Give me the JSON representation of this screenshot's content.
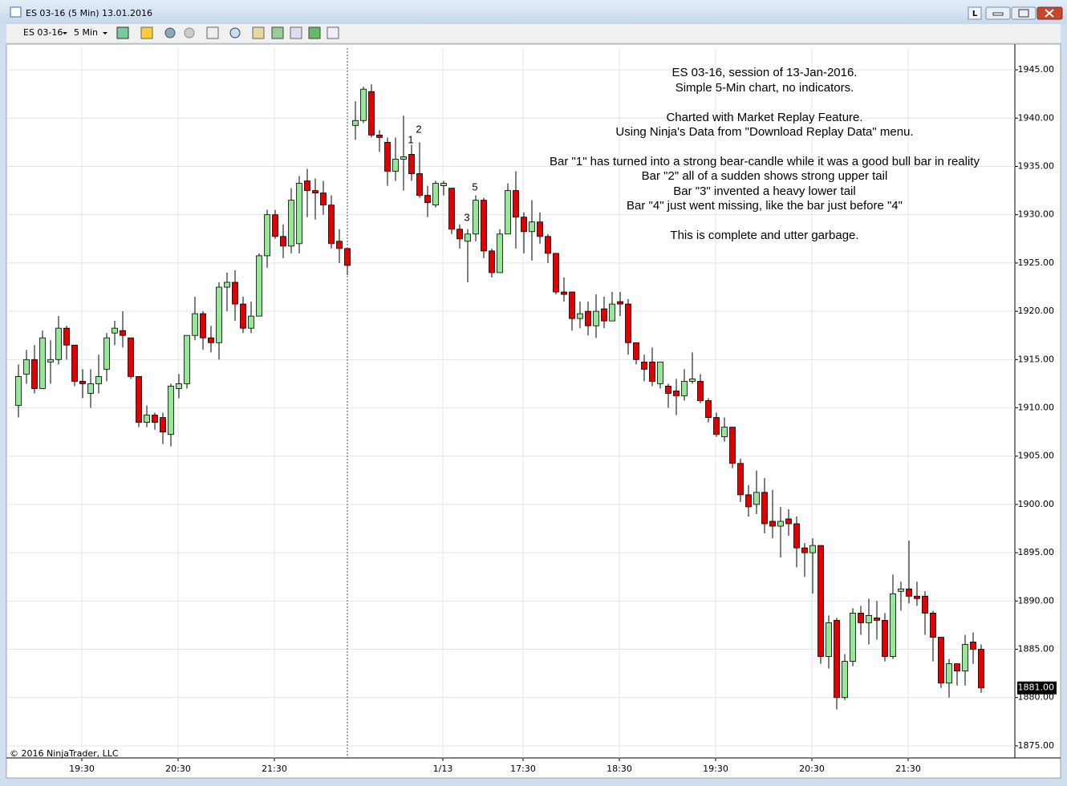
{
  "window": {
    "title": "ES 03-16 (5 Min)  13.01.2016"
  },
  "toolbar": {
    "instrument": "ES 03-16",
    "interval": "5 Min"
  },
  "chart_data": {
    "type": "candlestick",
    "categories": [
      null,
      null,
      null,
      null,
      null,
      null,
      null,
      null,
      "19:30",
      null,
      null,
      null,
      null,
      null,
      null,
      null,
      null,
      null,
      null,
      null,
      "20:30",
      null,
      null,
      null,
      null,
      null,
      null,
      null,
      null,
      null,
      null,
      null,
      "21:30",
      null,
      null,
      null,
      null,
      null,
      null,
      null,
      null,
      null,
      null,
      null,
      null,
      null,
      null,
      null,
      null,
      null,
      null,
      null,
      null,
      "1/13",
      null,
      null,
      null,
      null,
      null,
      null,
      null,
      null,
      null,
      "17:30",
      null,
      null,
      null,
      null,
      null,
      null,
      null,
      null,
      null,
      null,
      null,
      "18:30",
      null,
      null,
      null,
      null,
      null,
      null,
      null,
      null,
      null,
      null,
      null,
      "19:30",
      null,
      null,
      null,
      null,
      null,
      null,
      null,
      null,
      null,
      null,
      null,
      "20:30",
      null,
      null,
      null,
      null,
      null,
      null,
      null,
      null,
      null,
      null,
      null,
      "21:30",
      null,
      null,
      null,
      null,
      null,
      null,
      null,
      null,
      null
    ],
    "open": [
      1910.25,
      1913.5,
      1915,
      1912,
      1914.75,
      1915,
      1918.25,
      1916.5,
      1912.75,
      1911.5,
      1912.5,
      1914,
      1917.75,
      1918,
      1917.25,
      1913.25,
      1908.5,
      1909.25,
      1909,
      1907.25,
      1912,
      1912.5,
      1917.5,
      1919.75,
      1917.25,
      1916.75,
      1922.5,
      1923,
      1920.75,
      1918.25,
      1919.5,
      1925.75,
      1930,
      1927.75,
      1926.75,
      1927,
      1933.5,
      1932.5,
      1932.25,
      1931,
      1927.25,
      1926.5,
      1939.25,
      1939.75,
      1942.75,
      1938.25,
      1937.5,
      1934.5,
      1935.75,
      1936.25,
      1934.25,
      1932,
      1931,
      1933,
      1932.75,
      1928.5,
      1927.25,
      1928,
      1931.5,
      1926.25,
      1924,
      1928,
      1932.5,
      1929.75,
      1928.25,
      1929.25,
      1927.75,
      1926,
      1922,
      1922,
      1919.25,
      1920,
      1918.5,
      1920.25,
      1919,
      1921,
      1920.75,
      1916.75,
      1914.75,
      1914.75,
      1912.5,
      1912.25,
      1911.75,
      1911.25,
      1912.75,
      1912.75,
      1910.75,
      1909,
      1907,
      1908,
      1904.25,
      1901,
      1900,
      1901.25,
      1898.25,
      1897.75,
      1898.5,
      1898,
      1895.5,
      1895,
      1895.75,
      1884.25,
      1888,
      1880,
      1883.75,
      1888.75,
      1887.75,
      1888.25,
      1888,
      1884.25,
      1891,
      1891.25,
      1890.5,
      1890.5,
      1888.75,
      1886.25,
      1881.5,
      1883.5,
      1882.75,
      1885.75,
      1885
    ],
    "high": [
      1914.5,
      1916,
      1916.5,
      1918,
      1917,
      1919.5,
      1918.5,
      1916.5,
      1914,
      1914,
      1915.5,
      1917.75,
      1919,
      1920,
      1917.25,
      1913.25,
      1910.25,
      1909.5,
      1909.5,
      1912.5,
      1913.5,
      1917.5,
      1921.5,
      1920,
      1918.5,
      1923,
      1924,
      1924.25,
      1921.5,
      1921,
      1926,
      1930.5,
      1930.5,
      1929,
      1932.75,
      1934,
      1934.75,
      1933.75,
      1933.5,
      1932,
      1928.5,
      1926.5,
      1941.75,
      1943.25,
      1943.5,
      1938.75,
      1938,
      1938,
      1940.25,
      1937.25,
      1937.5,
      1933,
      1933.5,
      1933.5,
      1932.75,
      1929,
      1928.5,
      1932,
      1931.75,
      1926.5,
      1928.5,
      1933.25,
      1934.5,
      1930.25,
      1931.5,
      1930.25,
      1928,
      1926,
      1923.5,
      1922,
      1921,
      1921,
      1921.75,
      1921.5,
      1922,
      1922,
      1921.25,
      1916.75,
      1915.5,
      1916.25,
      1914.75,
      1912.5,
      1913,
      1914,
      1915.75,
      1913.5,
      1911,
      1909.5,
      1909,
      1908,
      1904.75,
      1902,
      1903.5,
      1902.75,
      1901.5,
      1899.75,
      1899.5,
      1898.75,
      1896,
      1896.5,
      1895.75,
      1888.5,
      1888.25,
      1884.5,
      1889.25,
      1889.5,
      1890.25,
      1890,
      1888.75,
      1892.75,
      1892,
      1896.25,
      1892,
      1891,
      1889,
      1886.25,
      1884,
      1883.5,
      1886.5,
      1886.75,
      1885.5
    ],
    "low": [
      1909,
      1912.5,
      1911.5,
      1912,
      1912.5,
      1914.5,
      1915,
      1912.25,
      1911,
      1910,
      1911.5,
      1912.75,
      1916.5,
      1916.25,
      1913,
      1908,
      1908,
      1907.75,
      1906.25,
      1906,
      1911,
      1912,
      1917,
      1916,
      1915.75,
      1915,
      1920,
      1919,
      1917.75,
      1917.75,
      1919.5,
      1924.5,
      1927.5,
      1925.5,
      1926,
      1926,
      1929.75,
      1929.5,
      1930,
      1926.5,
      1925,
      1923.75,
      1937.75,
      1939.5,
      1938,
      1936.5,
      1933,
      1933.5,
      1932.5,
      1933.5,
      1931.75,
      1929.75,
      1930.75,
      1932,
      1928,
      1926.5,
      1923,
      1927.25,
      1925.5,
      1923.5,
      1924,
      1928,
      1926.5,
      1926,
      1925.25,
      1927,
      1925,
      1921.75,
      1921,
      1918,
      1918.25,
      1917.5,
      1917.25,
      1918.25,
      1919,
      1919.5,
      1915.5,
      1914.5,
      1912.75,
      1912.25,
      1912,
      1910,
      1909.25,
      1910.75,
      1912.5,
      1910.5,
      1908.5,
      1907,
      1906.5,
      1903.75,
      1900.25,
      1898.75,
      1899,
      1897,
      1896.5,
      1894.5,
      1896.75,
      1893.5,
      1892.5,
      1890.75,
      1883.5,
      1883,
      1878.75,
      1879.75,
      1883.25,
      1886.5,
      1885.5,
      1886,
      1883.75,
      1884,
      1889,
      1889.75,
      1889.5,
      1886.5,
      1883.75,
      1881,
      1880,
      1881.25,
      1881.25,
      1883.5,
      1880.5
    ],
    "close": [
      1913.25,
      1915,
      1912,
      1917.25,
      1915,
      1918.25,
      1916.5,
      1912.75,
      1912.5,
      1912.5,
      1913.25,
      1917.25,
      1918.25,
      1917.5,
      1913.25,
      1908.5,
      1909.25,
      1908.5,
      1907.5,
      1912.25,
      1912.5,
      1917.5,
      1919.75,
      1917.25,
      1916.75,
      1922.5,
      1923,
      1920.75,
      1918.25,
      1919.5,
      1925.75,
      1930,
      1927.75,
      1926.75,
      1931.5,
      1933.25,
      1932.5,
      1932.25,
      1931,
      1927,
      1926.5,
      1924.75,
      1939.75,
      1943,
      1938.25,
      1938,
      1934.5,
      1935.75,
      1936,
      1934.25,
      1932,
      1931.25,
      1933.25,
      1933.25,
      1928.5,
      1927.5,
      1928,
      1931.5,
      1926.25,
      1924,
      1928,
      1932.5,
      1929.75,
      1928.25,
      1929.25,
      1927.75,
      1926,
      1922,
      1921.75,
      1919.25,
      1919.75,
      1918.5,
      1920,
      1919,
      1920.75,
      1920.75,
      1916.75,
      1915,
      1914,
      1912.75,
      1914.75,
      1911.5,
      1911.25,
      1912.75,
      1913,
      1910.75,
      1909,
      1907.25,
      1908,
      1904.25,
      1901,
      1899.75,
      1901.25,
      1898,
      1897.75,
      1898.25,
      1898,
      1895.5,
      1895,
      1895.75,
      1884.25,
      1887.75,
      1880,
      1883.75,
      1888.75,
      1887.75,
      1888.5,
      1888,
      1884.25,
      1890.75,
      1891.25,
      1890.5,
      1890.25,
      1888.75,
      1886.25,
      1881.5,
      1883.5,
      1882.75,
      1885.5,
      1885,
      1881
    ],
    "up_color": "#98e698",
    "down_color": "#e00000",
    "ylim": [
      1873.75,
      1947.25
    ],
    "yticks": [
      {
        "value": 1875,
        "label": "1875.00"
      },
      {
        "value": 1880,
        "label": "1880.00"
      },
      {
        "value": 1885,
        "label": "1885.00"
      },
      {
        "value": 1890,
        "label": "1890.00"
      },
      {
        "value": 1895,
        "label": "1895.00"
      },
      {
        "value": 1900,
        "label": "1900.00"
      },
      {
        "value": 1905,
        "label": "1905.00"
      },
      {
        "value": 1910,
        "label": "1910.00"
      },
      {
        "value": 1915,
        "label": "1915.00"
      },
      {
        "value": 1920,
        "label": "1920.00"
      },
      {
        "value": 1925,
        "label": "1925.00"
      },
      {
        "value": 1930,
        "label": "1930.00"
      },
      {
        "value": 1935,
        "label": "1935.00"
      },
      {
        "value": 1940,
        "label": "1940.00"
      },
      {
        "value": 1945,
        "label": "1945.00"
      }
    ],
    "grid": true,
    "last_price": {
      "value": 1881,
      "label": "1881.00"
    },
    "annotations": [
      "1",
      "2",
      "3",
      "5"
    ],
    "notes": [
      "ES 03-16, session of 13-Jan-2016.",
      "Simple 5-Min chart, no indicators.",
      "Charted with Market Replay Feature.",
      "Using Ninja's Data from \"Download Replay Data\" menu.",
      "Bar \"1\" has turned into a strong bear-candle while it was a good bull bar in reality",
      "Bar \"2\" all of a sudden shows strong upper tail",
      "Bar \"3\" invented a heavy lower tail",
      "Bar \"4\" just went missing, like the bar just before \"4\"",
      "This is complete and utter garbage."
    ],
    "copyright": "© 2016 NinjaTrader, LLC"
  }
}
